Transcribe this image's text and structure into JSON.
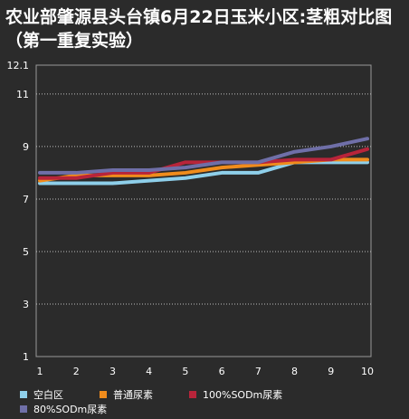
{
  "chart_data": {
    "type": "line",
    "title": "农业部肇源县头台镇6月22日玉米小区:茎粗对比图（第一重复实验）",
    "x": [
      1,
      2,
      3,
      4,
      5,
      6,
      7,
      8,
      9,
      10
    ],
    "y_ticks": [
      "1",
      "3",
      "5",
      "7",
      "9",
      "11",
      "12.1"
    ],
    "ylim": [
      1,
      12.1
    ],
    "xlim": [
      1,
      10
    ],
    "grid": "horizontal dotted",
    "legend_position": "bottom",
    "series": [
      {
        "name": "空白区",
        "color": "#8ecfea",
        "values": [
          7.6,
          7.6,
          7.6,
          7.7,
          7.8,
          8.0,
          8.0,
          8.4,
          8.4,
          8.4
        ]
      },
      {
        "name": "普通尿素",
        "color": "#f08c1c",
        "values": [
          7.7,
          7.9,
          7.9,
          7.9,
          8.0,
          8.2,
          8.3,
          8.4,
          8.5,
          8.5
        ]
      },
      {
        "name": "100%SODm尿素",
        "color": "#b8243a",
        "values": [
          7.8,
          7.8,
          8.0,
          8.0,
          8.4,
          8.4,
          8.4,
          8.5,
          8.5,
          8.9
        ]
      },
      {
        "name": "80%SODm尿素",
        "color": "#6f6fa8",
        "values": [
          8.0,
          8.0,
          8.1,
          8.1,
          8.2,
          8.4,
          8.4,
          8.8,
          9.0,
          9.3
        ]
      }
    ]
  }
}
